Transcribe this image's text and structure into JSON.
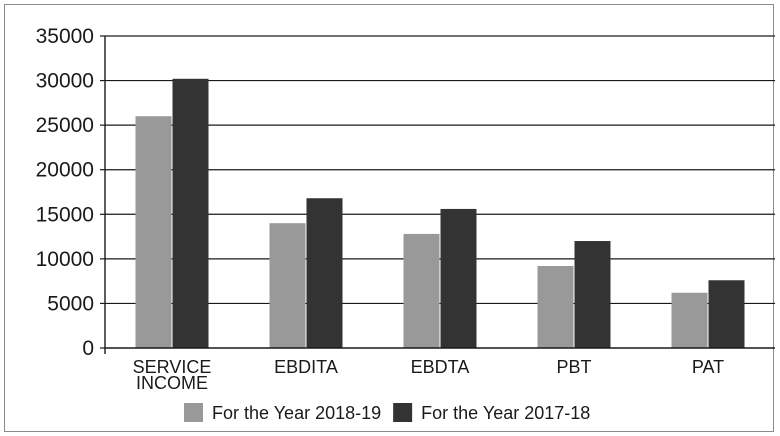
{
  "chart_data": {
    "type": "bar",
    "title": "",
    "xlabel": "",
    "ylabel": "",
    "categories": [
      [
        "SERVICE",
        "INCOME"
      ],
      [
        "EBDITA"
      ],
      [
        "EBDTA"
      ],
      [
        "PBT"
      ],
      [
        "PAT"
      ]
    ],
    "series": [
      {
        "name": "For the Year 2018-19",
        "color": "#999999",
        "values": [
          26000,
          14000,
          12800,
          9200,
          6200
        ]
      },
      {
        "name": "For the Year 2017-18",
        "color": "#333333",
        "values": [
          30200,
          16800,
          15600,
          12000,
          7600
        ]
      }
    ],
    "ylim": [
      0,
      35000
    ],
    "yticks": [
      0,
      5000,
      10000,
      15000,
      20000,
      25000,
      30000,
      35000
    ],
    "grid": true,
    "legend": "bottom"
  }
}
